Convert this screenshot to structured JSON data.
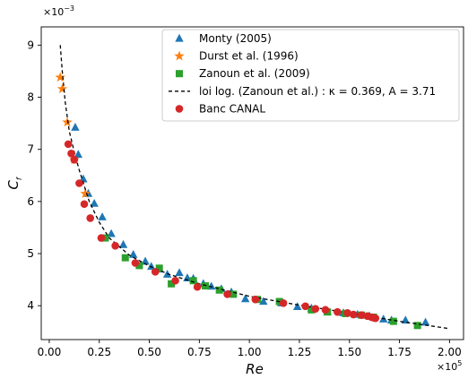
{
  "chart_data": {
    "type": "scatter",
    "xlabel": "Re",
    "ylabel": "C_f",
    "x_multiplier": "×10",
    "x_multiplier_exp": "5",
    "y_multiplier": "×10",
    "y_multiplier_exp": "−3",
    "xlim": [
      -4000,
      207000
    ],
    "ylim": [
      3.35,
      9.35
    ],
    "xticks": [
      0,
      25000,
      50000,
      75000,
      100000,
      125000,
      150000,
      175000,
      200000
    ],
    "xtick_labels": [
      "0.00",
      "0.25",
      "0.50",
      "0.75",
      "1.00",
      "1.25",
      "1.50",
      "1.75",
      "2.00"
    ],
    "yticks": [
      4,
      5,
      6,
      7,
      8,
      9
    ],
    "ytick_labels": [
      "4",
      "5",
      "6",
      "7",
      "8",
      "9"
    ],
    "legend_position": "top-right",
    "series": [
      {
        "name": "Monty (2005)",
        "marker": "triangle",
        "color": "#1f77b4",
        "x": [
          13000,
          14500,
          17000,
          19500,
          22500,
          26500,
          31000,
          37000,
          42000,
          48000,
          51000,
          55000,
          59000,
          65000,
          69000,
          72000,
          77000,
          81000,
          86000,
          91000,
          98000,
          107000,
          116000,
          124000,
          131000,
          139000,
          147000,
          154000,
          160000,
          167000,
          171000,
          178000,
          188000
        ],
        "y": [
          7.42,
          6.9,
          6.43,
          6.15,
          5.96,
          5.7,
          5.38,
          5.17,
          4.98,
          4.85,
          4.75,
          4.7,
          4.6,
          4.63,
          4.53,
          4.52,
          4.42,
          4.37,
          4.32,
          4.26,
          4.13,
          4.08,
          4.05,
          3.98,
          3.95,
          3.88,
          3.86,
          3.83,
          3.8,
          3.74,
          3.72,
          3.72,
          3.68
        ]
      },
      {
        "name": "Durst et al. (1996)",
        "marker": "star",
        "color": "#ff7f0e",
        "x": [
          5500,
          6500,
          9000,
          12500,
          18000
        ],
        "y": [
          8.38,
          8.16,
          7.52,
          6.8,
          6.15
        ]
      },
      {
        "name": "Zanoun et al. (2009)",
        "marker": "square",
        "color": "#2ca02c",
        "x": [
          28000,
          38000,
          45000,
          55000,
          61000,
          72000,
          78000,
          85000,
          92000,
          104000,
          115000,
          131000,
          139000,
          148000,
          156000,
          162000,
          172000,
          184000
        ],
        "y": [
          5.3,
          4.92,
          4.77,
          4.72,
          4.42,
          4.48,
          4.38,
          4.3,
          4.22,
          4.12,
          4.08,
          3.92,
          3.88,
          3.85,
          3.82,
          3.78,
          3.7,
          3.62
        ]
      },
      {
        "name": "loi log. (Zanoun et al.) : κ = 0.369, A = 3.71",
        "marker": "dashed-line",
        "color": "#000000",
        "x": [
          5500,
          6500,
          8000,
          10000,
          12500,
          15000,
          20000,
          25000,
          30000,
          40000,
          50000,
          60000,
          75000,
          100000,
          125000,
          150000,
          175000,
          200000
        ],
        "y": [
          9.0,
          8.5,
          7.9,
          7.35,
          6.95,
          6.6,
          6.0,
          5.6,
          5.3,
          4.97,
          4.76,
          4.6,
          4.42,
          4.18,
          4.01,
          3.86,
          3.7,
          3.56
        ]
      },
      {
        "name": " Banc CANAL",
        "marker": "circle",
        "color": "#d62728",
        "x": [
          9500,
          11000,
          12500,
          15000,
          17500,
          20500,
          26000,
          33000,
          43000,
          53000,
          63000,
          74000,
          89000,
          103000,
          117000,
          128000,
          133000,
          138000,
          144000,
          149000,
          152000,
          156000,
          159000,
          161000,
          162000,
          163000
        ],
        "y": [
          7.1,
          6.92,
          6.8,
          6.35,
          5.95,
          5.68,
          5.3,
          5.15,
          4.82,
          4.65,
          4.48,
          4.36,
          4.22,
          4.12,
          4.05,
          3.99,
          3.94,
          3.92,
          3.88,
          3.86,
          3.83,
          3.82,
          3.8,
          3.78,
          3.77,
          3.76
        ]
      }
    ]
  }
}
